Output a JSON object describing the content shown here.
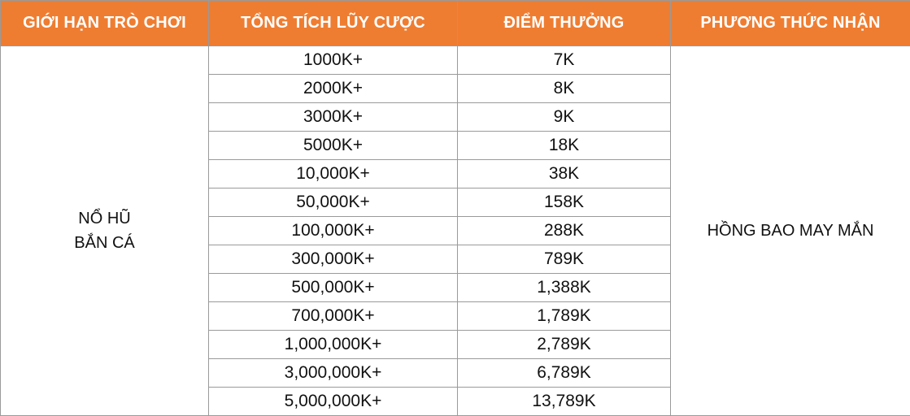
{
  "header": {
    "col1": "GIỚI HẠN TRÒ CHƠI",
    "col2": "TỔNG TÍCH LŨY CƯỢC",
    "col3": "ĐIỂM THƯỞNG",
    "col4": "PHƯƠNG THỨC NHẬN"
  },
  "game_limit": {
    "line1": "NỔ HŨ",
    "line2": "BẮN CÁ"
  },
  "receive_method": "HỒNG BAO MAY MẮN",
  "rows": [
    {
      "bet": "1000K+",
      "points": "7K"
    },
    {
      "bet": "2000K+",
      "points": "8K"
    },
    {
      "bet": "3000K+",
      "points": "9K"
    },
    {
      "bet": "5000K+",
      "points": "18K"
    },
    {
      "bet": "10,000K+",
      "points": "38K"
    },
    {
      "bet": "50,000K+",
      "points": "158K"
    },
    {
      "bet": "100,000K+",
      "points": "288K"
    },
    {
      "bet": "300,000K+",
      "points": "789K"
    },
    {
      "bet": "500,000K+",
      "points": "1,388K"
    },
    {
      "bet": "700,000K+",
      "points": "1,789K"
    },
    {
      "bet": "1,000,000K+",
      "points": "2,789K"
    },
    {
      "bet": "3,000,000K+",
      "points": "6,789K"
    },
    {
      "bet": "5,000,000K+",
      "points": "13,789K"
    }
  ],
  "colors": {
    "header_bg": "#ef7d31",
    "header_text": "#ffffff",
    "border": "#9a9a9a"
  }
}
